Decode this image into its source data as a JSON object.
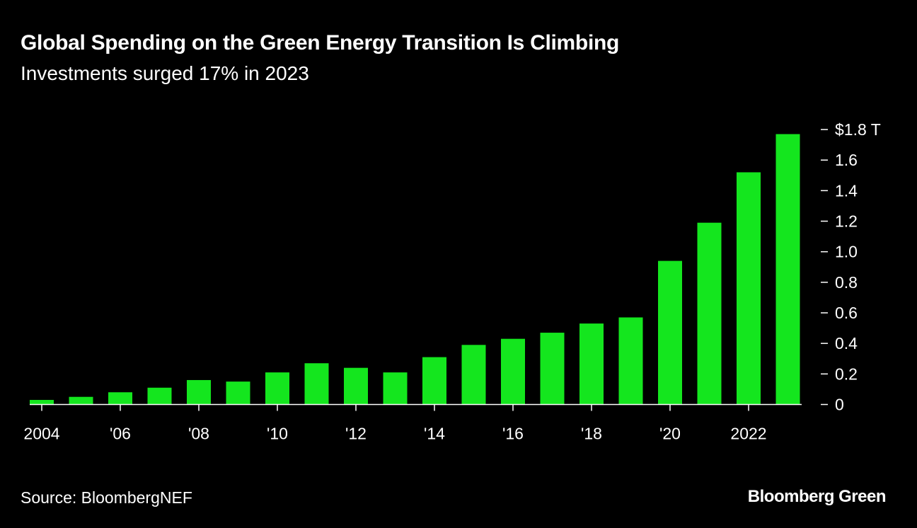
{
  "chart_data": {
    "type": "bar",
    "title": "Global Spending on the Green Energy Transition Is Climbing",
    "subtitle": "Investments surged 17% in 2023",
    "categories": [
      "2004",
      "2005",
      "2006",
      "2007",
      "2008",
      "2009",
      "2010",
      "2011",
      "2012",
      "2013",
      "2014",
      "2015",
      "2016",
      "2017",
      "2018",
      "2019",
      "2020",
      "2021",
      "2022",
      "2023"
    ],
    "values": [
      0.03,
      0.05,
      0.08,
      0.11,
      0.16,
      0.15,
      0.21,
      0.27,
      0.24,
      0.21,
      0.31,
      0.39,
      0.43,
      0.47,
      0.53,
      0.57,
      0.94,
      1.19,
      1.52,
      1.77
    ],
    "unit": "trillion USD",
    "ylim": [
      0,
      1.8
    ],
    "y_ticks": [
      0,
      0.2,
      0.4,
      0.6,
      0.8,
      1.0,
      1.2,
      1.4,
      1.6,
      1.8
    ],
    "y_tick_labels": [
      "0",
      "0.2",
      "0.4",
      "0.6",
      "0.8",
      "1.0",
      "1.2",
      "1.4",
      "1.6",
      "$1.8 T"
    ],
    "x_ticks": [
      "2004",
      "2006",
      "2008",
      "2010",
      "2012",
      "2014",
      "2016",
      "2018",
      "2020",
      "2022"
    ],
    "x_tick_labels": [
      "2004",
      "'06",
      "'08",
      "'10",
      "'12",
      "'14",
      "'16",
      "'18",
      "'20",
      "2022"
    ],
    "y_axis_side": "right",
    "grid": false,
    "bar_color": "#14e61e",
    "background": "#000000"
  },
  "source": "Source: BloombergNEF",
  "logo": "Bloomberg Green"
}
